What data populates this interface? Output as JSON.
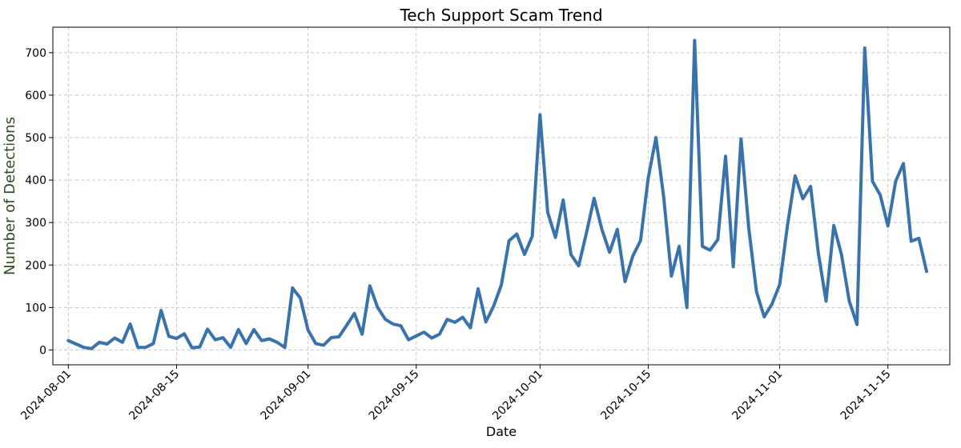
{
  "chart_data": {
    "type": "line",
    "title": "Tech Support Scam Trend",
    "xlabel": "Date",
    "ylabel": "Number of Detections",
    "ylabel_color": "#2e4d20",
    "line_color": "#3a73aa",
    "grid": true,
    "ylim": [
      -35,
      760
    ],
    "xlim": [
      "2024-07-30",
      "2024-11-23"
    ],
    "x_ticks": [
      "2024-08-01",
      "2024-08-15",
      "2024-09-01",
      "2024-09-15",
      "2024-10-01",
      "2024-10-15",
      "2024-11-01",
      "2024-11-15"
    ],
    "y_ticks": [
      0,
      100,
      200,
      300,
      400,
      500,
      600,
      700
    ],
    "x_start": "2024-08-01",
    "x_end": "2024-11-20",
    "series": [
      {
        "values": [
          22,
          14,
          6,
          3,
          18,
          14,
          28,
          18,
          61,
          6,
          6,
          15,
          93,
          32,
          27,
          38,
          5,
          7,
          49,
          24,
          29,
          6,
          48,
          15,
          48,
          22,
          26,
          18,
          6,
          146,
          122,
          47,
          15,
          11,
          29,
          31,
          58,
          86,
          37,
          151,
          100,
          72,
          61,
          57,
          24,
          33,
          42,
          28,
          37,
          72,
          65,
          77,
          52,
          144,
          66,
          103,
          153,
          257,
          273,
          225,
          268,
          554,
          324,
          265,
          353,
          225,
          198,
          275,
          357,
          284,
          230,
          284,
          161,
          221,
          257,
          405,
          500,
          360,
          174,
          244,
          100,
          729,
          244,
          235,
          260,
          456,
          196,
          497,
          287,
          137,
          78,
          108,
          154,
          292,
          410,
          356,
          385,
          228,
          115,
          293,
          224,
          115,
          60,
          711,
          397,
          365,
          292,
          397,
          439,
          256,
          263,
          185
        ]
      }
    ]
  }
}
